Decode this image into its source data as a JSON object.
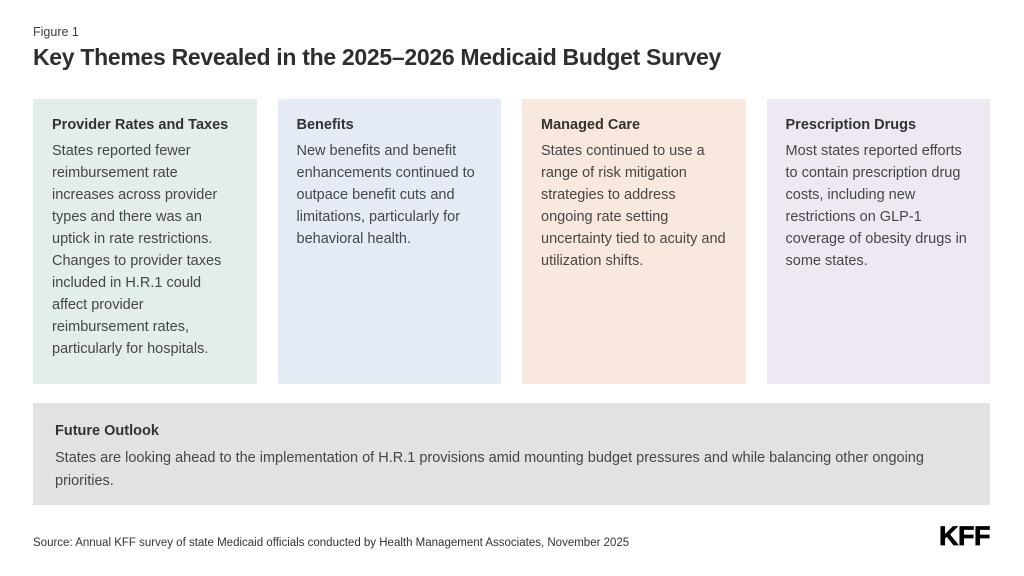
{
  "figure_label": "Figure 1",
  "title": "Key Themes Revealed in the 2025–2026 Medicaid Budget Survey",
  "theme_cards": [
    {
      "heading": "Provider Rates and Taxes",
      "body": "States reported fewer reimbursement rate increases across provider types and there was an uptick in rate restrictions. Changes to provider taxes included in H.R.1 could affect provider reimbursement rates, particularly for hospitals.",
      "bg": "#e3ede9"
    },
    {
      "heading": "Benefits",
      "body": "New benefits and benefit enhancements continued to outpace benefit cuts and limitations, particularly for behavioral health.",
      "bg": "#e4ebf4"
    },
    {
      "heading": "Managed Care",
      "body": "States continued to use a range of risk mitigation strategies to address ongoing rate setting uncertainty tied to acuity and utilization shifts.",
      "bg": "#f8e8dd"
    },
    {
      "heading": "Prescription Drugs",
      "body": "Most states reported efforts to contain prescription drug costs, including new restrictions on GLP-1 coverage of obesity drugs in some states.",
      "bg": "#efe8f2"
    }
  ],
  "future_outlook": {
    "heading": "Future Outlook",
    "body": "States are looking ahead to the implementation of H.R.1 provisions amid mounting budget pressures and while balancing other ongoing priorities.",
    "bg": "#e2e2e2"
  },
  "source_note": "Source: Annual KFF survey of state Medicaid officials conducted by Health Management Associates, November 2025",
  "logo_text": "KFF",
  "colors": {
    "page_bg": "#ffffff",
    "title_text": "#2e2e2e",
    "heading_text": "#333333",
    "body_text": "#464646",
    "logo_text": "#000000"
  }
}
